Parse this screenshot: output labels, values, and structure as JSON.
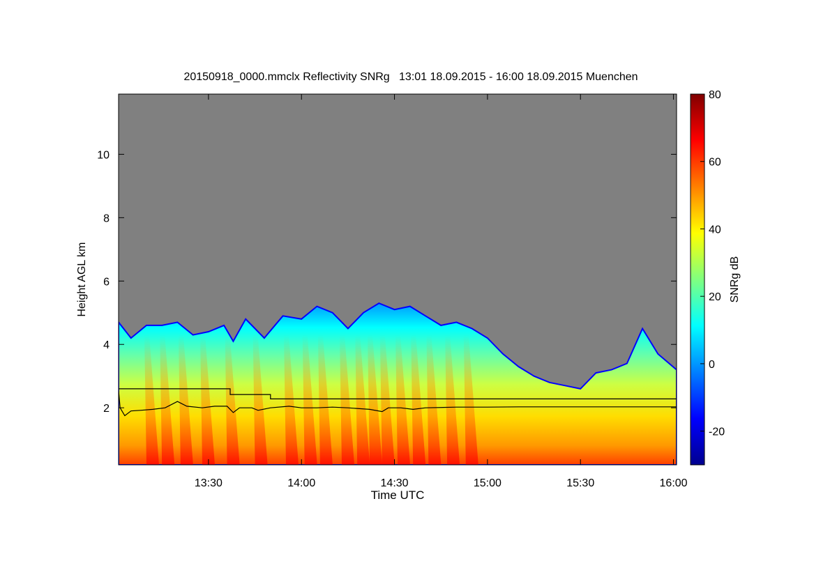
{
  "chart_data": {
    "type": "heatmap",
    "title": "20150918_0000.mmclx Reflectivity SNRg   13:01 18.09.2015 - 16:00 18.09.2015 Muenchen",
    "xlabel": "Time UTC",
    "ylabel": "Height AGL km",
    "colorbar_label": "SNRg dB",
    "x_range_minutes_utc": [
      781,
      961
    ],
    "y_range_km": [
      0.2,
      11.9
    ],
    "x_ticks": [
      {
        "minutes": 810,
        "label": "13:30"
      },
      {
        "minutes": 840,
        "label": "14:00"
      },
      {
        "minutes": 870,
        "label": "14:30"
      },
      {
        "minutes": 900,
        "label": "15:00"
      },
      {
        "minutes": 930,
        "label": "15:30"
      },
      {
        "minutes": 960,
        "label": "16:00"
      }
    ],
    "y_ticks": [
      {
        "value": 2,
        "label": "2"
      },
      {
        "value": 4,
        "label": "4"
      },
      {
        "value": 6,
        "label": "6"
      },
      {
        "value": 8,
        "label": "8"
      },
      {
        "value": 10,
        "label": "10"
      }
    ],
    "colorbar_range": [
      -30,
      80
    ],
    "colorbar_ticks": [
      {
        "value": -20,
        "label": "-20"
      },
      {
        "value": 0,
        "label": "0"
      },
      {
        "value": 20,
        "label": "20"
      },
      {
        "value": 40,
        "label": "40"
      },
      {
        "value": 60,
        "label": "60"
      },
      {
        "value": 80,
        "label": "80"
      }
    ],
    "colormap": [
      "#00008f",
      "#0000ff",
      "#0080ff",
      "#00ffff",
      "#80ff80",
      "#ffff00",
      "#ff8000",
      "#ff0000",
      "#800000"
    ],
    "background_color": "#808080",
    "cloud_top_km": [
      [
        781,
        4.7
      ],
      [
        785,
        4.2
      ],
      [
        790,
        4.6
      ],
      [
        795,
        4.6
      ],
      [
        800,
        4.7
      ],
      [
        805,
        4.3
      ],
      [
        810,
        4.4
      ],
      [
        815,
        4.6
      ],
      [
        818,
        4.1
      ],
      [
        822,
        4.8
      ],
      [
        828,
        4.2
      ],
      [
        834,
        4.9
      ],
      [
        840,
        4.8
      ],
      [
        845,
        5.2
      ],
      [
        850,
        5.0
      ],
      [
        855,
        4.5
      ],
      [
        860,
        5.0
      ],
      [
        865,
        5.3
      ],
      [
        870,
        5.1
      ],
      [
        875,
        5.2
      ],
      [
        880,
        4.9
      ],
      [
        885,
        4.6
      ],
      [
        890,
        4.7
      ],
      [
        895,
        4.5
      ],
      [
        900,
        4.2
      ],
      [
        905,
        3.7
      ],
      [
        910,
        3.3
      ],
      [
        915,
        3.0
      ],
      [
        920,
        2.8
      ],
      [
        925,
        2.7
      ],
      [
        930,
        2.6
      ],
      [
        935,
        3.1
      ],
      [
        940,
        3.2
      ],
      [
        945,
        3.4
      ],
      [
        950,
        4.5
      ],
      [
        955,
        3.7
      ],
      [
        961,
        3.2
      ]
    ],
    "line_series": [
      {
        "name": "upper reference",
        "points": [
          [
            781,
            2.6
          ],
          [
            817,
            2.6
          ],
          [
            817,
            2.42
          ],
          [
            830,
            2.42
          ],
          [
            830,
            2.28
          ],
          [
            961,
            2.28
          ]
        ]
      },
      {
        "name": "lower boundary",
        "points": [
          [
            781,
            2.55
          ],
          [
            781.5,
            2.0
          ],
          [
            783,
            1.75
          ],
          [
            785,
            1.9
          ],
          [
            788,
            1.92
          ],
          [
            792,
            1.95
          ],
          [
            796,
            2.0
          ],
          [
            800,
            2.2
          ],
          [
            803,
            2.05
          ],
          [
            808,
            2.0
          ],
          [
            812,
            2.05
          ],
          [
            816,
            2.05
          ],
          [
            818,
            1.85
          ],
          [
            820,
            2.0
          ],
          [
            824,
            2.0
          ],
          [
            826,
            1.92
          ],
          [
            830,
            2.0
          ],
          [
            836,
            2.05
          ],
          [
            840,
            2.0
          ],
          [
            845,
            2.0
          ],
          [
            850,
            2.02
          ],
          [
            855,
            2.0
          ],
          [
            862,
            1.95
          ],
          [
            866,
            1.88
          ],
          [
            868,
            2.0
          ],
          [
            872,
            2.0
          ],
          [
            876,
            1.95
          ],
          [
            880,
            2.0
          ],
          [
            890,
            2.02
          ],
          [
            900,
            2.02
          ],
          [
            910,
            2.03
          ],
          [
            920,
            2.03
          ],
          [
            961,
            2.03
          ]
        ]
      }
    ],
    "precipitation_shafts_minutes": [
      790,
      795,
      801,
      808,
      816,
      825,
      835,
      841,
      846,
      853,
      858,
      862,
      866,
      871,
      876,
      881,
      887,
      893
    ]
  }
}
